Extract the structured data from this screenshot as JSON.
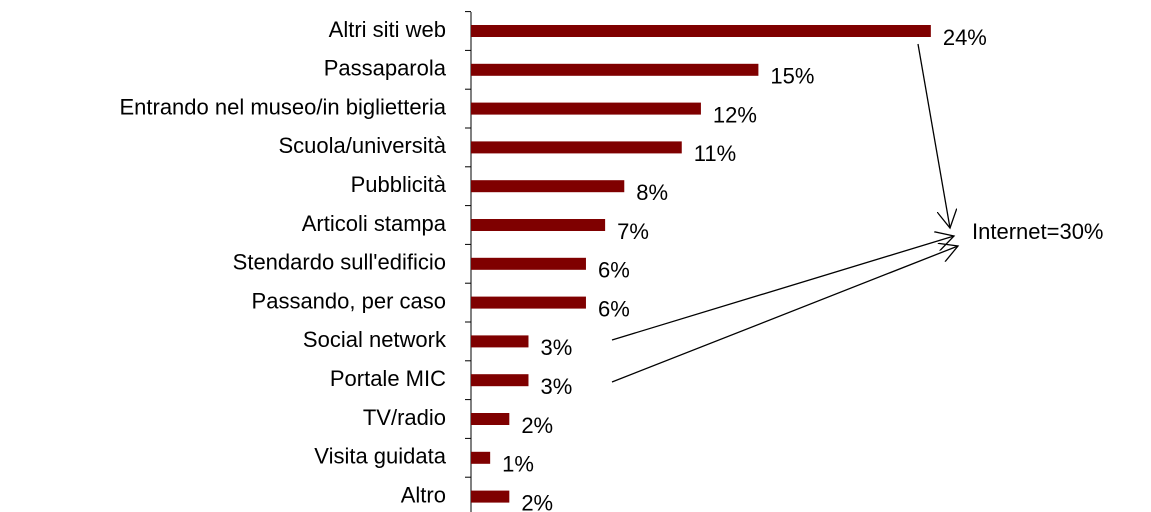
{
  "chart_data": {
    "type": "bar",
    "orientation": "horizontal",
    "categories": [
      "Altri siti web",
      "Passaparola",
      "Entrando nel museo/in biglietteria",
      "Scuola/università",
      "Pubblicità",
      "Articoli stampa",
      "Stendardo sull'edificio",
      "Passando, per caso",
      "Social network",
      "Portale MIC",
      "TV/radio",
      "Visita guidata",
      "Altro"
    ],
    "values": [
      24,
      15,
      12,
      11,
      8,
      7,
      6,
      6,
      3,
      3,
      2,
      1,
      2
    ],
    "value_labels": [
      "24%",
      "15%",
      "12%",
      "11%",
      "8%",
      "7%",
      "6%",
      "6%",
      "3%",
      "3%",
      "2%",
      "1%",
      "2%"
    ],
    "color": "#7f0000",
    "xlim": [
      0,
      25
    ],
    "annotation": "Internet=30%"
  }
}
